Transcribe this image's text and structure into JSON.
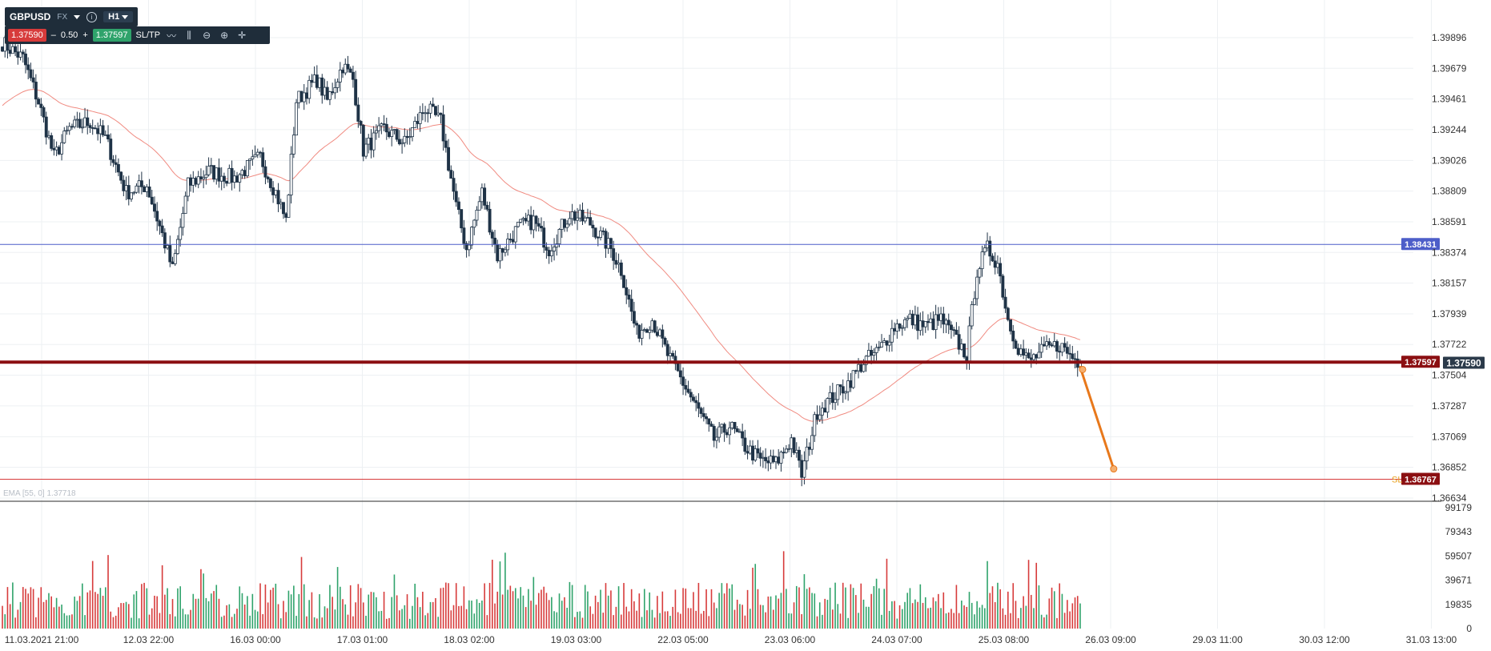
{
  "toolbar": {
    "symbol": "GBPUSD",
    "market": "FX",
    "timeframe": "H1",
    "bid": "1.37590",
    "minus": "–",
    "quantity": "0.50",
    "plus": "+",
    "ask": "1.37597",
    "sltp": "SL/TP",
    "icons": [
      "chart-type-icon",
      "indicators-icon",
      "zoom-out-icon",
      "zoom-in-icon",
      "crosshair-icon",
      "info-icon",
      "dropdown-icon"
    ]
  },
  "ema_legend": "EMA [55, 0] 1.37718",
  "colors": {
    "bull": "#2fa36b",
    "bear": "#d73b3b",
    "candle_body": "#1f3347",
    "ema": "#f08a80",
    "blue_line": "#4d5ec9",
    "price_line": "#8b0f12",
    "sl_line": "#d73b3b",
    "arrow": "#e8781b"
  },
  "chart_data": {
    "type": "candlestick",
    "symbol": "GBPUSD",
    "timeframe": "H1",
    "x_tick_labels": [
      "11.03.2021 21:00",
      "12.03 22:00",
      "16.03 00:00",
      "17.03 01:00",
      "18.03 02:00",
      "19.03 03:00",
      "22.03 05:00",
      "23.03 06:00",
      "24.03 07:00",
      "25.03 08:00",
      "26.03 09:00",
      "29.03 11:00",
      "30.03 12:00",
      "31.03 13:00"
    ],
    "y_price_ticks": [
      "1.39896",
      "1.39679",
      "1.39461",
      "1.39244",
      "1.39026",
      "1.38809",
      "1.38591",
      "1.38374",
      "1.38157",
      "1.37939",
      "1.37722",
      "1.37504",
      "1.37287",
      "1.37069",
      "1.36852",
      "1.36634"
    ],
    "y_price_range": [
      1.36634,
      1.39896
    ],
    "y_volume_ticks": [
      "99179",
      "79343",
      "59507",
      "39671",
      "19835",
      "0"
    ],
    "y_volume_range": [
      0,
      99179
    ],
    "horizontal_lines": [
      {
        "name": "resistance",
        "value": 1.38431,
        "label": "1.38431"
      },
      {
        "name": "bid-line",
        "value": 1.37597,
        "label": "1.37597"
      },
      {
        "name": "current-price",
        "value": 1.3759,
        "label": "1.37590"
      },
      {
        "name": "stop-loss",
        "value": 1.36767,
        "label": "1.36767"
      }
    ],
    "sl_tag": "SL",
    "indicator": {
      "name": "EMA",
      "params": [
        55,
        0
      ],
      "value": 1.37718
    },
    "close_anchors": [
      [
        0,
        1.3986
      ],
      [
        8,
        1.3975
      ],
      [
        14,
        1.3944
      ],
      [
        20,
        1.3905
      ],
      [
        26,
        1.3925
      ],
      [
        34,
        1.393
      ],
      [
        40,
        1.3918
      ],
      [
        48,
        1.388
      ],
      [
        56,
        1.3885
      ],
      [
        62,
        1.385
      ],
      [
        66,
        1.3825
      ],
      [
        72,
        1.3885
      ],
      [
        80,
        1.3895
      ],
      [
        90,
        1.389
      ],
      [
        100,
        1.3905
      ],
      [
        106,
        1.388
      ],
      [
        110,
        1.386
      ],
      [
        114,
        1.3945
      ],
      [
        122,
        1.396
      ],
      [
        126,
        1.3945
      ],
      [
        132,
        1.397
      ],
      [
        136,
        1.396
      ],
      [
        140,
        1.391
      ],
      [
        148,
        1.3925
      ],
      [
        156,
        1.3915
      ],
      [
        164,
        1.394
      ],
      [
        170,
        1.393
      ],
      [
        176,
        1.387
      ],
      [
        180,
        1.384
      ],
      [
        186,
        1.388
      ],
      [
        192,
        1.3835
      ],
      [
        200,
        1.3855
      ],
      [
        206,
        1.386
      ],
      [
        212,
        1.384
      ],
      [
        220,
        1.3865
      ],
      [
        228,
        1.3858
      ],
      [
        236,
        1.384
      ],
      [
        240,
        1.3825
      ],
      [
        246,
        1.378
      ],
      [
        252,
        1.379
      ],
      [
        258,
        1.3765
      ],
      [
        264,
        1.3745
      ],
      [
        270,
        1.3725
      ],
      [
        276,
        1.3705
      ],
      [
        282,
        1.3715
      ],
      [
        288,
        1.37
      ],
      [
        294,
        1.369
      ],
      [
        300,
        1.3688
      ],
      [
        306,
        1.3705
      ],
      [
        310,
        1.368
      ],
      [
        316,
        1.3725
      ],
      [
        322,
        1.3735
      ],
      [
        328,
        1.3745
      ],
      [
        334,
        1.376
      ],
      [
        340,
        1.3768
      ],
      [
        346,
        1.3785
      ],
      [
        352,
        1.379
      ],
      [
        358,
        1.3785
      ],
      [
        364,
        1.379
      ],
      [
        370,
        1.3775
      ],
      [
        374,
        1.3765
      ],
      [
        378,
        1.3825
      ],
      [
        382,
        1.384
      ],
      [
        386,
        1.383
      ],
      [
        390,
        1.379
      ],
      [
        394,
        1.377
      ],
      [
        398,
        1.376
      ],
      [
        404,
        1.3768
      ],
      [
        410,
        1.3772
      ],
      [
        414,
        1.3765
      ],
      [
        418,
        1.3759
      ]
    ],
    "candle_count": 419,
    "projection": {
      "from": 1.3759,
      "to": 1.36767,
      "bars_ahead": 10
    }
  }
}
